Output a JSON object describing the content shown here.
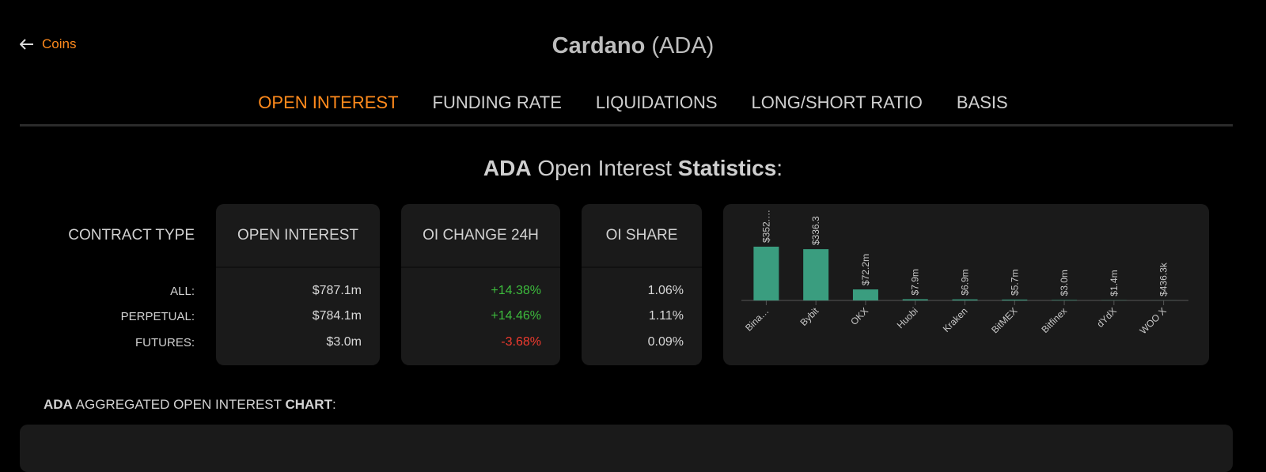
{
  "nav": {
    "back": "Coins"
  },
  "header": {
    "name": "Cardano",
    "symbol": "(ADA)"
  },
  "tabs": [
    "OPEN INTEREST",
    "FUNDING RATE",
    "LIQUIDATIONS",
    "LONG/SHORT RATIO",
    "BASIS"
  ],
  "stats_title": {
    "symbol": "ADA",
    "middle": "Open Interest",
    "bold": "Statistics",
    "colon": ":"
  },
  "table": {
    "headers": [
      "CONTRACT TYPE",
      "OPEN INTEREST",
      "OI CHANGE 24H",
      "OI SHARE"
    ],
    "rows": [
      [
        "ALL:",
        "$787.1m",
        "+14.38%",
        "1.06%"
      ],
      [
        "PERPETUAL:",
        "$784.1m",
        "+14.46%",
        "1.11%"
      ],
      [
        "FUTURES:",
        "$3.0m",
        "-3.68%",
        "0.09%"
      ]
    ]
  },
  "chart_data": {
    "type": "bar",
    "color": "#3a9d7f",
    "categories": [
      "Bina…",
      "Bybit",
      "OKX",
      "Huobi",
      "Kraken",
      "BitMEX",
      "Bitfinex",
      "dYdX",
      "WOO X"
    ],
    "values": [
      352.5,
      336.3,
      72.2,
      7.9,
      6.9,
      5.7,
      3.0,
      1.4,
      0.4363
    ],
    "value_labels": [
      "$352.…",
      "$336.3",
      "$72.2m",
      "$7.9m",
      "$6.9m",
      "$5.7m",
      "$3.0m",
      "$1.4m",
      "$436.3k"
    ]
  },
  "section_title": {
    "symbol": "ADA",
    "middle": "AGGREGATED OPEN INTEREST",
    "bold": "CHART",
    "colon": ":"
  }
}
